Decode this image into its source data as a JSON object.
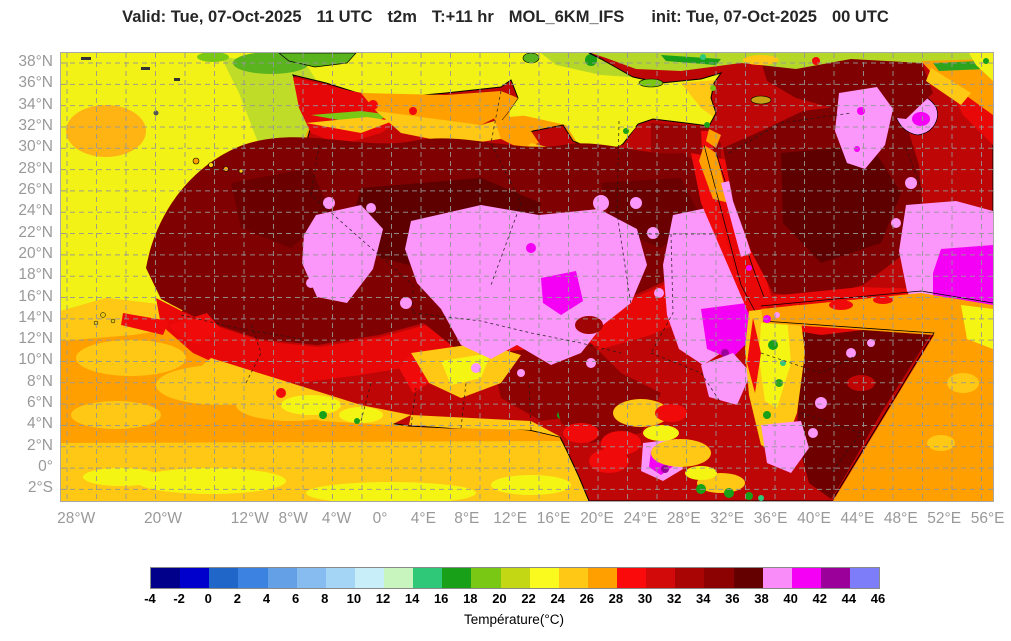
{
  "title": {
    "parts": [
      "Valid: Tue, 07-Oct-2025",
      "11 UTC",
      "t2m",
      "T:+11 hr",
      "MOL_6KM_IFS",
      "init: Tue, 07-Oct-2025",
      "00 UTC"
    ]
  },
  "axes": {
    "lat_labels": [
      "38°N",
      "36°N",
      "34°N",
      "32°N",
      "30°N",
      "28°N",
      "26°N",
      "24°N",
      "22°N",
      "20°N",
      "18°N",
      "16°N",
      "14°N",
      "12°N",
      "10°N",
      "8°N",
      "6°N",
      "4°N",
      "2°N",
      "0°",
      "2°S"
    ],
    "lon_ticks": [
      {
        "label": "28°W",
        "deg": -28
      },
      {
        "label": "20°W",
        "deg": -20
      },
      {
        "label": "12°W",
        "deg": -12
      },
      {
        "label": "8°W",
        "deg": -8
      },
      {
        "label": "4°W",
        "deg": -4
      },
      {
        "label": "0°",
        "deg": 0
      },
      {
        "label": "4°E",
        "deg": 4
      },
      {
        "label": "8°E",
        "deg": 8
      },
      {
        "label": "12°E",
        "deg": 12
      },
      {
        "label": "16°E",
        "deg": 16
      },
      {
        "label": "20°E",
        "deg": 20
      },
      {
        "label": "24°E",
        "deg": 24
      },
      {
        "label": "28°E",
        "deg": 28
      },
      {
        "label": "32°E",
        "deg": 32
      },
      {
        "label": "36°E",
        "deg": 36
      },
      {
        "label": "40°E",
        "deg": 40
      },
      {
        "label": "44°E",
        "deg": 44
      },
      {
        "label": "48°E",
        "deg": 48
      },
      {
        "label": "52°E",
        "deg": 52
      },
      {
        "label": "56°E",
        "deg": 56
      }
    ]
  },
  "colorbar": {
    "title": "Température(°C)",
    "tick_labels": [
      "-4",
      "-2",
      "0",
      "2",
      "4",
      "6",
      "8",
      "10",
      "12",
      "14",
      "16",
      "18",
      "20",
      "22",
      "24",
      "26",
      "28",
      "30",
      "32",
      "34",
      "36",
      "38",
      "40",
      "42",
      "44",
      "46"
    ],
    "segments": [
      {
        "from": -4,
        "to": -2,
        "color": "#00008B"
      },
      {
        "from": -2,
        "to": 0,
        "color": "#0000CD"
      },
      {
        "from": 0,
        "to": 2,
        "color": "#2065C8"
      },
      {
        "from": 2,
        "to": 4,
        "color": "#3C82E1"
      },
      {
        "from": 4,
        "to": 6,
        "color": "#64A0E6"
      },
      {
        "from": 6,
        "to": 8,
        "color": "#87BCF0"
      },
      {
        "from": 8,
        "to": 10,
        "color": "#A5D5F5"
      },
      {
        "from": 10,
        "to": 12,
        "color": "#C8EEFA"
      },
      {
        "from": 12,
        "to": 14,
        "color": "#C8F5BE"
      },
      {
        "from": 14,
        "to": 16,
        "color": "#2EC878"
      },
      {
        "from": 16,
        "to": 18,
        "color": "#18A018"
      },
      {
        "from": 18,
        "to": 20,
        "color": "#78C814"
      },
      {
        "from": 20,
        "to": 22,
        "color": "#C3D714"
      },
      {
        "from": 22,
        "to": 24,
        "color": "#FAFA1E"
      },
      {
        "from": 24,
        "to": 26,
        "color": "#FFC814"
      },
      {
        "from": 26,
        "to": 28,
        "color": "#FFA000"
      },
      {
        "from": 28,
        "to": 30,
        "color": "#FA0A0A"
      },
      {
        "from": 30,
        "to": 32,
        "color": "#D20A0A"
      },
      {
        "from": 32,
        "to": 34,
        "color": "#AA0505"
      },
      {
        "from": 34,
        "to": 36,
        "color": "#8C0101"
      },
      {
        "from": 36,
        "to": 38,
        "color": "#640000"
      },
      {
        "from": 38,
        "to": 40,
        "color": "#FA8CFA"
      },
      {
        "from": 40,
        "to": 42,
        "color": "#F500F5"
      },
      {
        "from": 42,
        "to": 44,
        "color": "#9B009B"
      },
      {
        "from": 44,
        "to": 46,
        "color": "#7D7DFA"
      }
    ]
  }
}
